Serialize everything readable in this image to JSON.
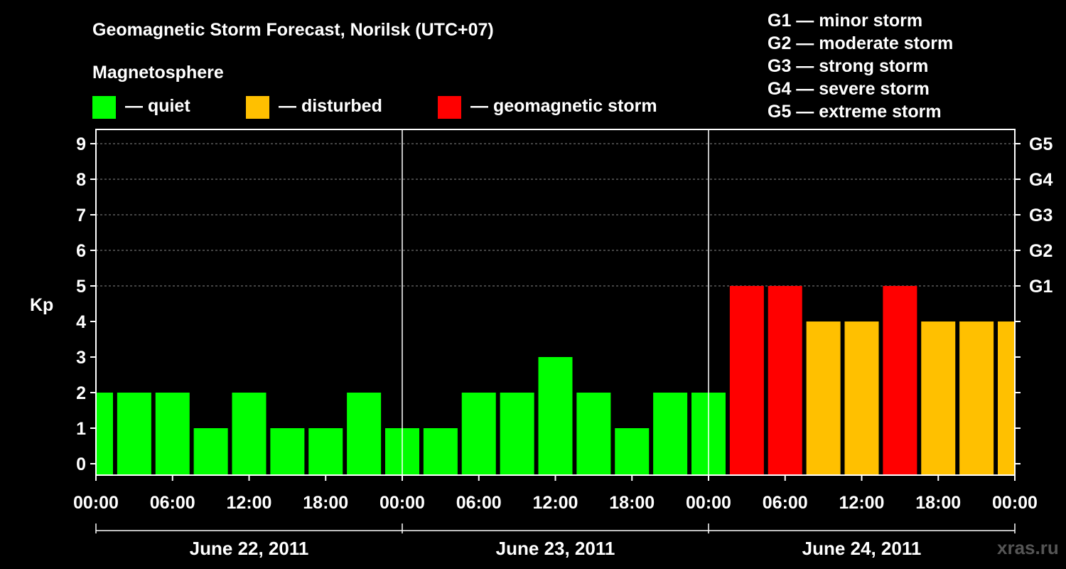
{
  "chart_data": {
    "type": "bar",
    "title": "Geomagnetic Storm Forecast, Norilsk (UTC+07)",
    "legend": {
      "heading": "Magnetosphere",
      "items": [
        {
          "label": "— quiet",
          "color": "#00ff00"
        },
        {
          "label": "— disturbed",
          "color": "#ffc000"
        },
        {
          "label": "— geomagnetic storm",
          "color": "#ff0000"
        }
      ]
    },
    "storm_scale": [
      "G1 — minor storm",
      "G2 — moderate storm",
      "G3 — strong storm",
      "G4 — severe storm",
      "G5 — extreme storm"
    ],
    "ylabel": "Kp",
    "ylim": [
      0,
      9
    ],
    "y_ticks": [
      0,
      1,
      2,
      3,
      4,
      5,
      6,
      7,
      8,
      9
    ],
    "right_ticks": [
      {
        "kp": 5,
        "label": "G1"
      },
      {
        "kp": 6,
        "label": "G2"
      },
      {
        "kp": 7,
        "label": "G3"
      },
      {
        "kp": 8,
        "label": "G4"
      },
      {
        "kp": 9,
        "label": "G5"
      }
    ],
    "grid": "horizontal dashed at Kp 5-9",
    "x_tick_labels": [
      "00:00",
      "06:00",
      "12:00",
      "18:00",
      "00:00",
      "06:00",
      "12:00",
      "18:00",
      "00:00",
      "06:00",
      "12:00",
      "18:00",
      "00:00"
    ],
    "days": [
      "June 22, 2011",
      "June 23, 2011",
      "June 24, 2011"
    ],
    "series": [
      {
        "values": [
          2,
          2,
          2,
          1,
          2,
          1,
          1,
          2,
          1,
          1,
          2,
          2,
          3,
          2,
          1,
          2,
          2,
          5,
          5,
          4,
          4,
          5,
          4,
          4,
          4
        ],
        "colors": [
          "quiet",
          "quiet",
          "quiet",
          "quiet",
          "quiet",
          "quiet",
          "quiet",
          "quiet",
          "quiet",
          "quiet",
          "quiet",
          "quiet",
          "quiet",
          "quiet",
          "quiet",
          "quiet",
          "quiet",
          "storm",
          "storm",
          "disturbed",
          "disturbed",
          "storm",
          "disturbed",
          "disturbed",
          "disturbed"
        ]
      }
    ],
    "bar_centers_hours": [
      0,
      3,
      6,
      9,
      12,
      15,
      18,
      21,
      24,
      27,
      30,
      33,
      36,
      39,
      42,
      45,
      48,
      51,
      54,
      57,
      60,
      63,
      66,
      69,
      72
    ],
    "x_range_hours": [
      0,
      72
    ]
  },
  "colors": {
    "quiet": "#00ff00",
    "disturbed": "#ffc000",
    "storm": "#ff0000",
    "axis": "#ffffff",
    "grid": "#888888",
    "background": "#000000"
  },
  "watermark": "xras.ru"
}
